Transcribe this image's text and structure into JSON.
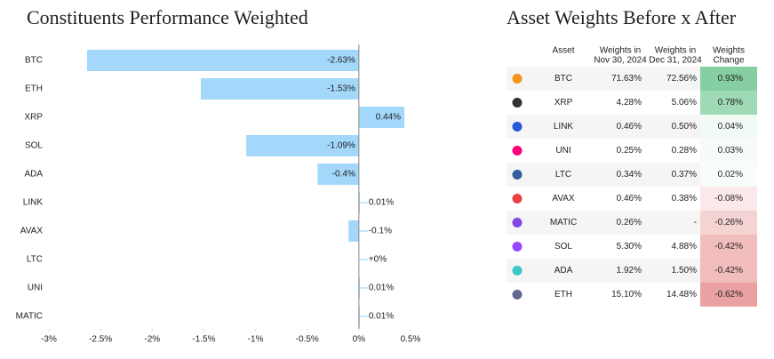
{
  "chart_data": {
    "type": "hbar",
    "title": "Constituents Performance Weighted",
    "categories": [
      "BTC",
      "ETH",
      "XRP",
      "SOL",
      "ADA",
      "LINK",
      "AVAX",
      "LTC",
      "UNI",
      "MATIC"
    ],
    "values": [
      -2.63,
      -1.53,
      0.44,
      -1.09,
      -0.4,
      0.01,
      -0.1,
      0,
      0.01,
      0.01
    ],
    "value_labels": [
      "-2.63%",
      "-1.53%",
      "0.44%",
      "-1.09%",
      "-0.4%",
      "0.01%",
      "-0.1%",
      "+0%",
      "0.01%",
      "0.01%"
    ],
    "color": "#a3d8fb",
    "xlim": [
      -3,
      0.5
    ],
    "xticks": [
      {
        "value": -3,
        "label": "-3%"
      },
      {
        "value": -2.5,
        "label": "-2.5%"
      },
      {
        "value": -2,
        "label": "-2%"
      },
      {
        "value": -1.5,
        "label": "-1.5%"
      },
      {
        "value": -1,
        "label": "-1%"
      },
      {
        "value": -0.5,
        "label": "-0.5%"
      },
      {
        "value": 0,
        "label": "0%"
      },
      {
        "value": 0.5,
        "label": "0.5%"
      }
    ]
  },
  "table": {
    "title": "Asset Weights Before x After",
    "header": [
      [
        "Asset"
      ],
      [
        "Weights in",
        "Nov 30, 2024"
      ],
      [
        "Weights in",
        "Dec 31, 2024"
      ],
      [
        "Weights",
        "Change"
      ]
    ],
    "rows": [
      [
        "BTC",
        "71.63%",
        "72.56%",
        "0.93%"
      ],
      [
        "XRP",
        "4.28%",
        "5.06%",
        "0.78%"
      ],
      [
        "LINK",
        "0.46%",
        "0.50%",
        "0.04%"
      ],
      [
        "UNI",
        "0.25%",
        "0.28%",
        "0.03%"
      ],
      [
        "LTC",
        "0.34%",
        "0.37%",
        "0.02%"
      ],
      [
        "AVAX",
        "0.46%",
        "0.38%",
        "-0.08%"
      ],
      [
        "MATIC",
        "0.26%",
        "-",
        "-0.26%"
      ],
      [
        "SOL",
        "5.30%",
        "4.88%",
        "-0.42%"
      ],
      [
        "ADA",
        "1.92%",
        "1.50%",
        "-0.42%"
      ],
      [
        "ETH",
        "15.10%",
        "14.48%",
        "-0.62%"
      ]
    ],
    "change_colors": [
      "#86cfa3",
      "#9fd9b5",
      "#f2faf5",
      "#f6fbf8",
      "#f9fdfa",
      "#fbe9e9",
      "#f6d3d3",
      "#f1bdbd",
      "#f1bdbd",
      "#eaa1a1"
    ]
  }
}
